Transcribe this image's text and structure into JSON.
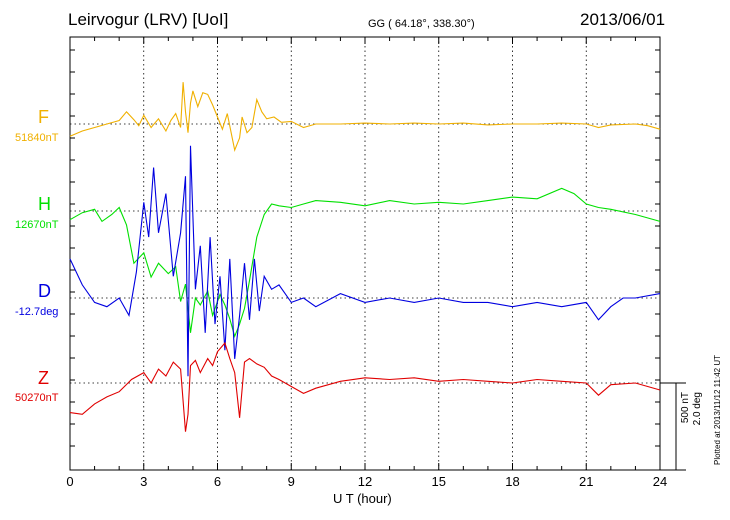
{
  "header": {
    "title": "Leirvogur (LRV)  [UoI]",
    "coords": "GG ( 64.18°, 338.30°)",
    "date": "2013/06/01"
  },
  "footer": {
    "plotted": "Plotted at 2013/11/12 11:42 UT",
    "scale_nt": "500 nT",
    "scale_deg": "2.0 deg"
  },
  "chart_data": {
    "type": "line",
    "xlabel": "U T (hour)",
    "xlim": [
      0,
      24
    ],
    "xticks": [
      "0",
      "3",
      "6",
      "9",
      "12",
      "15",
      "18",
      "21",
      "24"
    ],
    "grid": true,
    "series": [
      {
        "name": "F",
        "baseline": "51840nT",
        "color": "#f0b000",
        "x": [
          0,
          0.5,
          1,
          1.5,
          2,
          2.3,
          2.6,
          2.8,
          3.0,
          3.3,
          3.6,
          3.9,
          4.1,
          4.3,
          4.5,
          4.6,
          4.7,
          4.8,
          4.9,
          5.0,
          5.2,
          5.4,
          5.6,
          5.8,
          6.0,
          6.2,
          6.4,
          6.6,
          6.7,
          6.9,
          7.0,
          7.2,
          7.4,
          7.6,
          7.8,
          8.0,
          8.3,
          8.6,
          9.0,
          9.5,
          10,
          11,
          12,
          13,
          14,
          15,
          16,
          17,
          18,
          19,
          20,
          21,
          21.5,
          22,
          23,
          23.5,
          24
        ],
        "y": [
          -70,
          -40,
          -20,
          0,
          20,
          70,
          25,
          -10,
          50,
          -20,
          30,
          -40,
          20,
          60,
          -20,
          240,
          70,
          -50,
          120,
          190,
          100,
          180,
          170,
          110,
          40,
          -30,
          60,
          -80,
          -150,
          -80,
          40,
          -50,
          -20,
          140,
          70,
          30,
          40,
          10,
          15,
          -20,
          0,
          0,
          5,
          0,
          5,
          0,
          5,
          -5,
          0,
          0,
          5,
          0,
          -20,
          -5,
          0,
          -10,
          -30
        ]
      },
      {
        "name": "H",
        "baseline": "12670nT",
        "color": "#00e000",
        "x": [
          0,
          0.5,
          1,
          1.3,
          1.7,
          2.0,
          2.3,
          2.6,
          3.0,
          3.3,
          3.6,
          4.0,
          4.3,
          4.5,
          4.7,
          4.9,
          5.1,
          5.3,
          5.6,
          5.8,
          6.1,
          6.3,
          6.5,
          6.7,
          6.9,
          7.1,
          7.3,
          7.6,
          7.9,
          8.2,
          8.5,
          9.0,
          9.5,
          10,
          11,
          12,
          13,
          14,
          15,
          16,
          17,
          18,
          19,
          20,
          20.5,
          21,
          21.5,
          22,
          23,
          24
        ],
        "y": [
          -50,
          -10,
          10,
          -60,
          -20,
          20,
          -80,
          -300,
          -240,
          -380,
          -300,
          -360,
          -320,
          -520,
          -420,
          -700,
          -500,
          -540,
          -460,
          -600,
          -480,
          -540,
          -620,
          -720,
          -650,
          -560,
          -400,
          -150,
          -20,
          40,
          30,
          20,
          40,
          60,
          50,
          30,
          60,
          40,
          50,
          40,
          60,
          80,
          70,
          130,
          100,
          40,
          20,
          10,
          -20,
          -60
        ]
      },
      {
        "name": "D",
        "baseline": "-12.7deg",
        "color": "#0000e0",
        "x": [
          0,
          0.5,
          1,
          1.5,
          2,
          2.4,
          2.7,
          3.0,
          3.2,
          3.4,
          3.6,
          3.9,
          4.2,
          4.5,
          4.7,
          4.8,
          4.9,
          5.1,
          5.3,
          5.5,
          5.7,
          5.9,
          6.1,
          6.3,
          6.5,
          6.7,
          6.9,
          7.1,
          7.3,
          7.5,
          7.7,
          7.9,
          8.2,
          8.5,
          9.0,
          9.5,
          10,
          11,
          12,
          13,
          14,
          15,
          16,
          17,
          18,
          19,
          20,
          21,
          21.5,
          22,
          22.5,
          23,
          24
        ],
        "y": [
          0.9,
          0.3,
          -0.1,
          -0.2,
          0.0,
          -0.4,
          0.6,
          2.2,
          1.4,
          3.0,
          1.5,
          2.4,
          0.5,
          1.5,
          2.8,
          -1.8,
          3.5,
          0.2,
          1.2,
          -0.8,
          1.4,
          -0.6,
          0.5,
          -1.2,
          0.9,
          -1.4,
          -0.4,
          0.8,
          -0.5,
          0.9,
          -0.3,
          0.5,
          0.2,
          0.3,
          -0.1,
          0.0,
          -0.2,
          0.1,
          -0.1,
          0.0,
          -0.1,
          0.0,
          -0.1,
          -0.1,
          -0.2,
          -0.1,
          -0.2,
          -0.1,
          -0.5,
          -0.2,
          0.0,
          0.0,
          0.1
        ]
      },
      {
        "name": "Z",
        "baseline": "50270nT",
        "color": "#e00000",
        "x": [
          0,
          0.5,
          1,
          1.5,
          2,
          2.5,
          3.0,
          3.3,
          3.6,
          3.9,
          4.2,
          4.5,
          4.7,
          4.8,
          4.9,
          5.1,
          5.3,
          5.6,
          5.8,
          6.0,
          6.3,
          6.5,
          6.7,
          6.9,
          7.1,
          7.3,
          7.6,
          7.9,
          8.2,
          8.5,
          9.0,
          9.5,
          10,
          11,
          12,
          13,
          14,
          15,
          16,
          17,
          18,
          19,
          20,
          21,
          21.5,
          22,
          23,
          24
        ],
        "y": [
          -170,
          -180,
          -120,
          -80,
          -50,
          20,
          60,
          0,
          80,
          40,
          120,
          80,
          -280,
          -180,
          100,
          130,
          60,
          140,
          100,
          180,
          230,
          140,
          60,
          -200,
          120,
          140,
          110,
          90,
          40,
          20,
          -20,
          -60,
          -30,
          10,
          30,
          20,
          30,
          10,
          20,
          10,
          0,
          20,
          10,
          0,
          -70,
          -10,
          0,
          -40
        ]
      }
    ]
  }
}
